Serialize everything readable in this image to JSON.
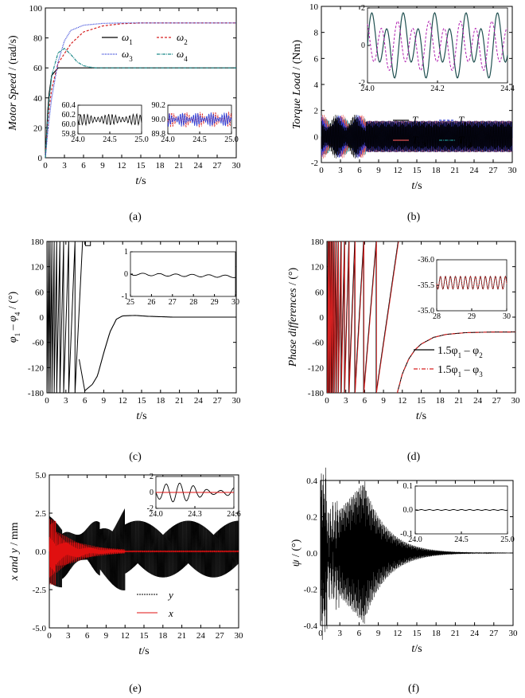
{
  "panels": [
    {
      "id": "a",
      "caption": "(a)",
      "ylabel_italic": "Motor Speed",
      "ylabel_unit": "/ (rad/s)",
      "xlabel_italic": "t",
      "xlabel_unit": "/s",
      "legend_labels": [
        "ω",
        "ω",
        "ω",
        "ω"
      ],
      "legend_subs": [
        "1",
        "2",
        "3",
        "4"
      ],
      "inset1": {
        "x_ticks": [
          "24.0",
          "24.5",
          "25.0"
        ],
        "y_ticks": [
          "59.8",
          "60.0",
          "60.2",
          "60.4"
        ]
      },
      "inset2": {
        "x_ticks": [
          "24.0",
          "24.5",
          "25.0"
        ],
        "y_ticks": [
          "89.8",
          "90.0",
          "90.2"
        ]
      }
    },
    {
      "id": "b",
      "caption": "(b)",
      "ylabel_italic": "Torque Load",
      "ylabel_unit": "/ (Nm)",
      "xlabel_italic": "t",
      "xlabel_unit": "/s",
      "legend_labels": [
        "T",
        "T",
        "T",
        "T"
      ],
      "legend_subs": [
        "L1",
        "L2",
        "L3",
        "L4"
      ],
      "inset": {
        "x_ticks": [
          "24.0",
          "24.2",
          "24.4"
        ],
        "y_ticks": [
          "-2",
          "0",
          "2"
        ]
      }
    },
    {
      "id": "c",
      "caption": "(c)",
      "ylabel_text": "φ",
      "ylabel_sub1": "1",
      "ylabel_minus": "–",
      "ylabel_text2": "φ",
      "ylabel_sub2": "4",
      "ylabel_unit": "/ (°)",
      "xlabel_italic": "t",
      "xlabel_unit": "/s",
      "inset": {
        "x_ticks": [
          "25",
          "26",
          "27",
          "28",
          "29",
          "30"
        ],
        "y_ticks": [
          "-1",
          "0",
          "1"
        ]
      }
    },
    {
      "id": "d",
      "caption": "(d)",
      "ylabel_italic": "Phase differences",
      "ylabel_unit": "/ (°)",
      "xlabel_italic": "t",
      "xlabel_unit": "/s",
      "legend_labels": [
        "1.5φ",
        "1.5φ"
      ],
      "legend_tail": [
        "– φ",
        "– φ"
      ],
      "legend_subs_a": [
        "1",
        "1"
      ],
      "legend_subs_b": [
        "2",
        "3"
      ],
      "inset": {
        "x_ticks": [
          "28",
          "29",
          "30"
        ],
        "y_ticks": [
          "-35.0",
          "-35.5",
          "-36.0"
        ]
      }
    },
    {
      "id": "e",
      "caption": "(e)",
      "ylabel_italic": "x and y",
      "ylabel_unit": "/ mm",
      "xlabel_italic": "t",
      "xlabel_unit": "/s",
      "legend_labels": [
        "y",
        "x"
      ],
      "inset": {
        "x_ticks": [
          "24.0",
          "24.3",
          "24.6"
        ],
        "y_ticks": [
          "-2",
          "0",
          "2"
        ]
      }
    },
    {
      "id": "f",
      "caption": "(f)",
      "ylabel_italic": "ψ",
      "ylabel_unit": "/ (°)",
      "xlabel_italic": "t",
      "xlabel_unit": "/s",
      "inset": {
        "x_ticks": [
          "24.0",
          "24.5",
          "25.0"
        ],
        "y_ticks": [
          "-0.1",
          "0.0",
          "0.1"
        ]
      }
    }
  ],
  "chart_data": [
    {
      "type": "line",
      "title": "(a)",
      "xlabel": "t/s",
      "ylabel": "Motor Speed / (rad/s)",
      "xlim": [
        0,
        30
      ],
      "ylim": [
        0,
        100
      ],
      "x_ticks": [
        0,
        3,
        6,
        9,
        12,
        15,
        18,
        21,
        24,
        27,
        30
      ],
      "y_ticks": [
        0,
        20,
        40,
        60,
        80,
        100
      ],
      "series": [
        {
          "name": "ω1",
          "color": "#000000",
          "x": [
            0,
            0.5,
            1,
            2,
            3,
            5,
            30
          ],
          "values": [
            0,
            40,
            55,
            60,
            60,
            60,
            60
          ]
        },
        {
          "name": "ω2",
          "color": "#d62020",
          "x": [
            0,
            0.5,
            1,
            2,
            4,
            6,
            9,
            12,
            15,
            30
          ],
          "values": [
            0,
            30,
            46,
            63,
            76,
            84,
            88,
            89.5,
            90,
            90
          ]
        },
        {
          "name": "ω3",
          "color": "#2a3ad6",
          "x": [
            0,
            0.5,
            1,
            2,
            3,
            4,
            6,
            9,
            12,
            30
          ],
          "values": [
            0,
            22,
            40,
            64,
            78,
            85,
            88.5,
            89.7,
            90,
            90
          ]
        },
        {
          "name": "ω4",
          "color": "#1f8a8a",
          "x": [
            0,
            0.5,
            1,
            2,
            3,
            4,
            5,
            6,
            7,
            8,
            30
          ],
          "values": [
            0,
            35,
            55,
            70,
            73,
            69,
            64,
            61.5,
            60.5,
            60,
            60
          ]
        }
      ]
    },
    {
      "type": "line",
      "title": "(b)",
      "xlabel": "t/s",
      "ylabel": "Torque Load / (Nm)",
      "xlim": [
        0,
        30
      ],
      "ylim": [
        -2,
        10
      ],
      "x_ticks": [
        0,
        3,
        6,
        9,
        12,
        15,
        18,
        21,
        24,
        27,
        30
      ],
      "y_ticks": [
        -2,
        0,
        2,
        4,
        6,
        8,
        10
      ],
      "series": [
        {
          "name": "TL1",
          "color": "#000000",
          "description": "oscillation amplitude ~1.2 Nm about 0"
        },
        {
          "name": "TL2",
          "color": "#2a3ad6",
          "description": "oscillation amplitude ~1.2 Nm about 0"
        },
        {
          "name": "TL3",
          "color": "#e05050",
          "description": "oscillation amplitude ~1.2 Nm about 0"
        },
        {
          "name": "TL4",
          "color": "#1f8a8a",
          "description": "oscillation amplitude ~1.0 Nm about 0"
        }
      ]
    },
    {
      "type": "line",
      "title": "(c)",
      "xlabel": "t/s",
      "ylabel": "φ1 – φ4 / (°)",
      "xlim": [
        0,
        30
      ],
      "ylim": [
        -180,
        180
      ],
      "x_ticks": [
        0,
        3,
        6,
        9,
        12,
        15,
        18,
        21,
        24,
        27,
        30
      ],
      "y_ticks": [
        -180,
        -120,
        -60,
        0,
        60,
        120,
        180
      ],
      "series": [
        {
          "name": "φ1 – φ4",
          "color": "#000000",
          "x": [
            7.2,
            8,
            9,
            10,
            11,
            12,
            14,
            16,
            20,
            30
          ],
          "values": [
            -160,
            -140,
            -85,
            -35,
            -5,
            3,
            4,
            2,
            0,
            0
          ]
        }
      ]
    },
    {
      "type": "line",
      "title": "(d)",
      "xlabel": "t/s",
      "ylabel": "Phase differences / (°)",
      "xlim": [
        0,
        30
      ],
      "ylim": [
        -180,
        180
      ],
      "x_ticks": [
        0,
        3,
        6,
        9,
        12,
        15,
        18,
        21,
        24,
        27,
        30
      ],
      "y_ticks": [
        -180,
        -120,
        -60,
        0,
        60,
        120,
        180
      ],
      "series": [
        {
          "name": "1.5φ1 – φ2",
          "color": "#000000",
          "x": [
            11.2,
            12,
            13,
            14,
            15,
            17,
            19,
            22,
            26,
            30
          ],
          "values": [
            -180,
            -135,
            -100,
            -78,
            -64,
            -48,
            -41,
            -37,
            -35.5,
            -35.3
          ]
        },
        {
          "name": "1.5φ1 – φ3",
          "color": "#d62020",
          "x": [
            11.2,
            12,
            13,
            14,
            15,
            17,
            19,
            22,
            26,
            30
          ],
          "values": [
            -180,
            -135,
            -100,
            -78,
            -64,
            -48,
            -41,
            -37,
            -35.5,
            -35.3
          ]
        }
      ]
    },
    {
      "type": "line",
      "title": "(e)",
      "xlabel": "t/s",
      "ylabel": "x and y / mm",
      "xlim": [
        0,
        30
      ],
      "ylim": [
        -5,
        5
      ],
      "x_ticks": [
        0,
        3,
        6,
        9,
        12,
        15,
        18,
        21,
        24,
        27,
        30
      ],
      "y_ticks": [
        -5.0,
        -2.5,
        0.0,
        2.5,
        5.0
      ],
      "series": [
        {
          "name": "y",
          "color": "#000000",
          "description": "oscillation, steady envelope about -1.7 to +2.0 mm after ~12 s"
        },
        {
          "name": "x",
          "color": "#e01010",
          "description": "oscillation decaying from ~2 mm to ~0 by 12 s"
        }
      ]
    },
    {
      "type": "line",
      "title": "(f)",
      "xlabel": "t/s",
      "ylabel": "ψ / (°)",
      "xlim": [
        0,
        30
      ],
      "ylim": [
        -0.4,
        0.4
      ],
      "x_ticks": [
        0,
        3,
        6,
        9,
        12,
        15,
        18,
        21,
        24,
        27,
        30
      ],
      "y_ticks": [
        -0.4,
        -0.2,
        0.0,
        0.2,
        0.4
      ],
      "series": [
        {
          "name": "ψ",
          "color": "#000000",
          "description": "oscillation peaking ~±0.35° near 7 s, decaying to 0 by ~20 s"
        }
      ]
    }
  ]
}
